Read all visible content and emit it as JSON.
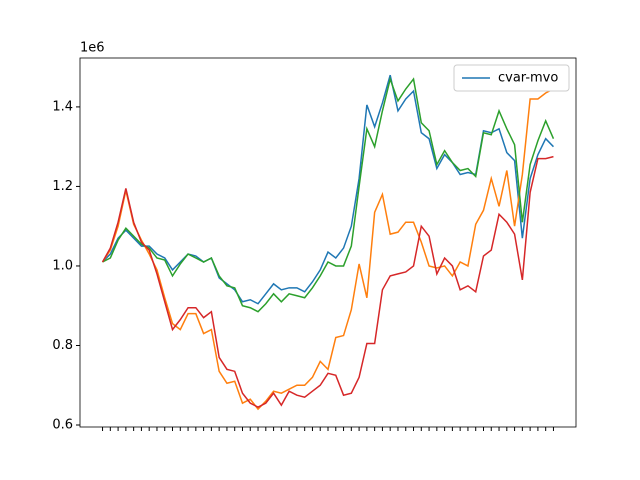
{
  "chart_data": {
    "type": "line",
    "offset_text": "1e6",
    "categories": [
      null,
      null,
      null,
      null,
      null,
      null,
      null,
      null,
      null,
      null,
      null,
      null,
      null,
      null,
      null,
      null,
      null,
      null,
      null,
      null,
      null,
      null,
      null,
      null,
      null,
      null,
      null,
      null,
      null,
      null,
      null,
      null,
      null,
      null,
      null,
      null,
      null,
      null,
      null,
      null,
      null,
      null,
      null,
      null,
      null,
      null,
      null,
      null,
      null,
      null,
      null,
      null,
      null,
      null,
      null,
      null,
      null,
      null,
      null
    ],
    "series": [
      {
        "name": "cvar-mvo",
        "color": "#1f77b4",
        "values": [
          1.01,
          1.03,
          1.07,
          1.09,
          1.07,
          1.05,
          1.05,
          1.03,
          1.02,
          0.99,
          1.01,
          1.03,
          1.025,
          1.01,
          1.02,
          0.97,
          0.955,
          0.94,
          0.91,
          0.915,
          0.905,
          0.93,
          0.955,
          0.94,
          0.945,
          0.945,
          0.935,
          0.96,
          0.99,
          1.035,
          1.02,
          1.045,
          1.1,
          1.22,
          1.405,
          1.35,
          1.41,
          1.48,
          1.39,
          1.42,
          1.44,
          1.335,
          1.32,
          1.245,
          1.28,
          1.26,
          1.23,
          1.235,
          1.23,
          1.34,
          1.335,
          1.345,
          1.285,
          1.265,
          1.07,
          1.22,
          1.28,
          1.32,
          1.3
        ]
      },
      {
        "color": "#ff7f0e",
        "values": [
          1.01,
          1.04,
          1.1,
          1.19,
          1.105,
          1.065,
          1.03,
          0.99,
          0.92,
          0.855,
          0.84,
          0.88,
          0.88,
          0.83,
          0.84,
          0.735,
          0.705,
          0.71,
          0.655,
          0.665,
          0.64,
          0.66,
          0.685,
          0.68,
          0.69,
          0.7,
          0.7,
          0.72,
          0.76,
          0.74,
          0.82,
          0.825,
          0.89,
          1.005,
          0.92,
          1.135,
          1.18,
          1.08,
          1.085,
          1.11,
          1.11,
          1.06,
          1.0,
          0.995,
          1.0,
          0.975,
          1.01,
          1.0,
          1.105,
          1.14,
          1.22,
          1.15,
          1.24,
          1.1,
          1.23,
          1.42,
          1.42,
          1.435,
          1.445
        ]
      },
      {
        "color": "#2ca02c",
        "values": [
          1.01,
          1.02,
          1.065,
          1.095,
          1.075,
          1.055,
          1.045,
          1.02,
          1.015,
          0.975,
          1.005,
          1.03,
          1.02,
          1.01,
          1.02,
          0.975,
          0.95,
          0.945,
          0.9,
          0.895,
          0.885,
          0.905,
          0.93,
          0.91,
          0.93,
          0.925,
          0.92,
          0.945,
          0.975,
          1.01,
          1.0,
          1.0,
          1.05,
          1.2,
          1.345,
          1.3,
          1.39,
          1.47,
          1.415,
          1.445,
          1.47,
          1.36,
          1.34,
          1.255,
          1.29,
          1.26,
          1.24,
          1.245,
          1.225,
          1.335,
          1.33,
          1.39,
          1.345,
          1.305,
          1.11,
          1.255,
          1.315,
          1.365,
          1.32
        ]
      },
      {
        "color": "#d62728",
        "values": [
          1.01,
          1.045,
          1.11,
          1.195,
          1.11,
          1.06,
          1.04,
          0.98,
          0.91,
          0.84,
          0.865,
          0.895,
          0.895,
          0.87,
          0.885,
          0.77,
          0.74,
          0.735,
          0.68,
          0.655,
          0.645,
          0.655,
          0.68,
          0.65,
          0.685,
          0.675,
          0.67,
          0.685,
          0.7,
          0.73,
          0.725,
          0.675,
          0.68,
          0.72,
          0.805,
          0.805,
          0.94,
          0.975,
          0.98,
          0.985,
          1.0,
          1.1,
          1.075,
          0.98,
          1.02,
          1.0,
          0.94,
          0.95,
          0.935,
          1.025,
          1.04,
          1.13,
          1.11,
          1.08,
          0.965,
          1.185,
          1.27,
          1.27,
          1.275
        ]
      }
    ],
    "ylim": [
      0.595,
      1.523
    ],
    "yticks": [
      0.6,
      0.8,
      {
        "value": 1,
        "label": "1.0"
      },
      1.2,
      1.4
    ],
    "legend": "upper right",
    "grid": false
  }
}
